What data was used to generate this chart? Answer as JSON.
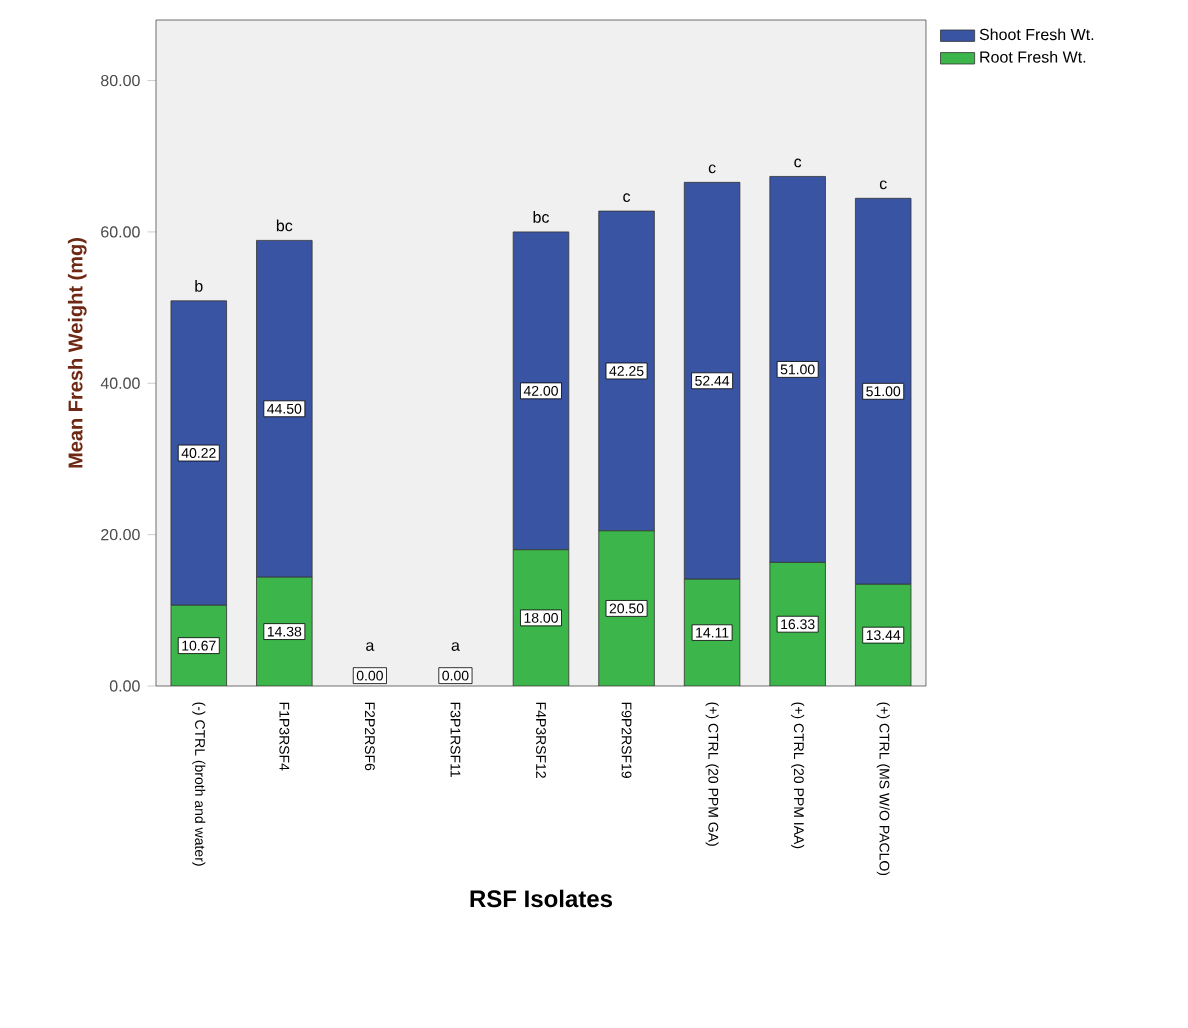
{
  "chart_data": {
    "type": "bar",
    "stacked": true,
    "xlabel": "RSF Isolates",
    "ylabel": "Mean Fresh Weight (mg)",
    "categories": [
      "(-) CTRL (broth and water)",
      "F1P3RSF4",
      "F2P2RSF6",
      "F3P1RSF11",
      "F4P3RSF12",
      "F9P2RSF19",
      "(+) CTRL (20 PPM GA)",
      "(+) CTRL (20 PPM IAA)",
      "(+) CTRL (MS W/O PACLO)"
    ],
    "series": [
      {
        "name": "Root Fresh Wt.",
        "color": "#3cb54a",
        "values": [
          10.67,
          14.38,
          0,
          0,
          18.0,
          20.5,
          14.11,
          16.33,
          13.44
        ],
        "value_labels": [
          "10.67",
          "14.38",
          "0.00",
          "0.00",
          "18.00",
          "20.50",
          "14.11",
          "16.33",
          "13.44"
        ]
      },
      {
        "name": "Shoot Fresh Wt.",
        "color": "#3a54a4",
        "values": [
          40.22,
          44.5,
          0,
          0,
          42.0,
          42.25,
          52.44,
          51.0,
          51.0
        ],
        "value_labels": [
          "40.22",
          "44.50",
          null,
          null,
          "42.00",
          "42.25",
          "52.44",
          "51.00",
          "51.00"
        ]
      }
    ],
    "ylim": [
      0,
      88
    ],
    "yticks": [
      {
        "value": 0,
        "label": "0.00"
      },
      {
        "value": 20,
        "label": "20.00"
      },
      {
        "value": 40,
        "label": "40.00"
      },
      {
        "value": 60,
        "label": "60.00"
      },
      {
        "value": 80,
        "label": "80.00"
      }
    ],
    "annotations": [
      {
        "text": "b",
        "x": "(-) CTRL (broth and water)",
        "y": 50.89
      },
      {
        "text": "bc",
        "x": "F1P3RSF4",
        "y": 58.88
      },
      {
        "text": "a",
        "x": "F2P2RSF6",
        "y": 0
      },
      {
        "text": "a",
        "x": "F3P1RSF11",
        "y": 0
      },
      {
        "text": "bc",
        "x": "F4P3RSF12",
        "y": 60.0
      },
      {
        "text": "c",
        "x": "F9P2RSF19",
        "y": 62.75
      },
      {
        "text": "c",
        "x": "(+) CTRL (20 PPM GA)",
        "y": 66.55
      },
      {
        "text": "c",
        "x": "(+) CTRL (20 PPM IAA)",
        "y": 67.33
      },
      {
        "text": "c",
        "x": "(+) CTRL (MS W/O PACLO)",
        "y": 64.44
      }
    ],
    "grid": false,
    "legend": "top right"
  }
}
